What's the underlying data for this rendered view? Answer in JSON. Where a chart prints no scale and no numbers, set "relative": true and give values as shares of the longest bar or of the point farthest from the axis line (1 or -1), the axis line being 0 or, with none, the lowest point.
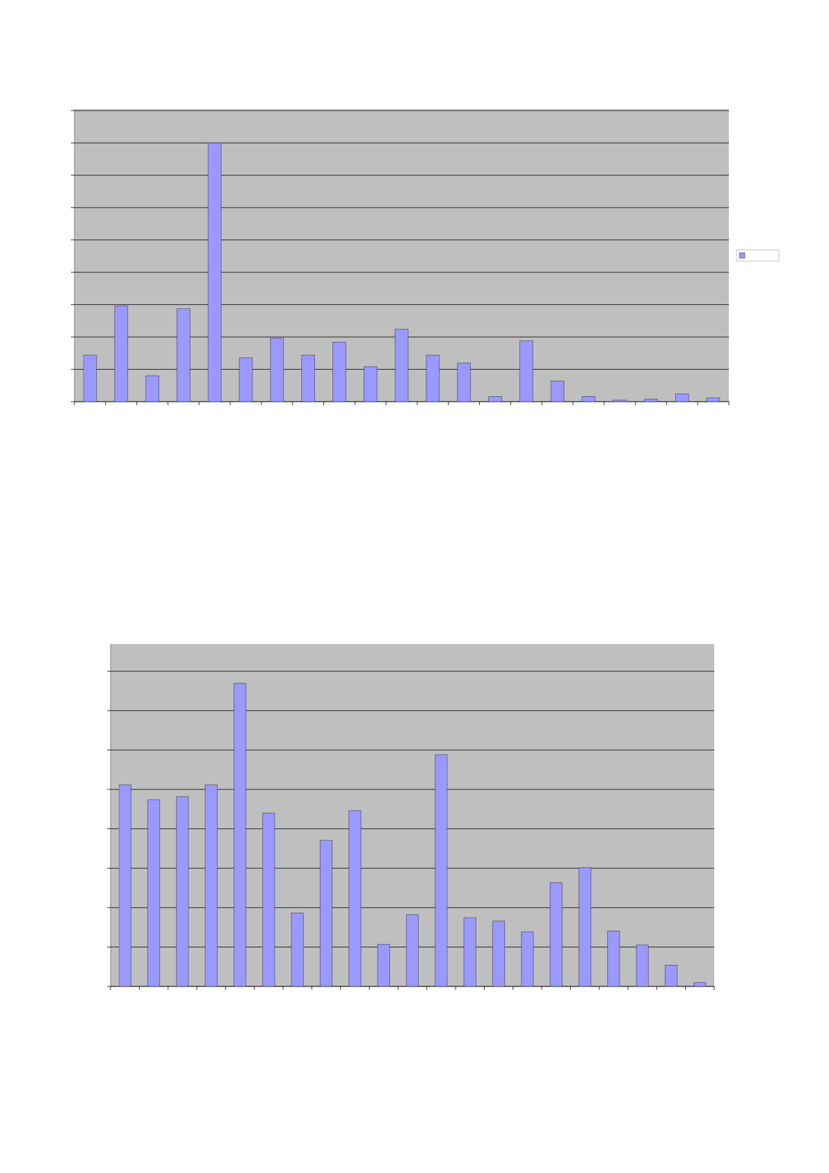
{
  "chart_data": [
    {
      "type": "bar",
      "relative": true,
      "categories": [
        null,
        null,
        null,
        null,
        null,
        null,
        null,
        null,
        null,
        null,
        null,
        null,
        null,
        null,
        null,
        null,
        null,
        null,
        null,
        null,
        null
      ],
      "values": [
        0.18,
        0.37,
        0.1,
        0.36,
        1.0,
        0.17,
        0.245,
        0.18,
        0.23,
        0.135,
        0.28,
        0.18,
        0.15,
        0.02,
        0.235,
        0.08,
        0.02,
        0.006,
        0.01,
        0.03,
        0.015
      ],
      "color": "#9999ff",
      "grid": "y"
    },
    {
      "type": "bar",
      "relative": true,
      "categories": [
        null,
        null,
        null,
        null,
        null,
        null,
        null,
        null,
        null,
        null,
        null,
        null,
        null,
        null,
        null,
        null,
        null,
        null,
        null,
        null,
        null
      ],
      "values": [
        0.665,
        0.616,
        0.626,
        0.665,
        1.0,
        0.572,
        0.242,
        0.482,
        0.58,
        0.139,
        0.237,
        0.765,
        0.227,
        0.216,
        0.18,
        0.343,
        0.392,
        0.183,
        0.137,
        0.07,
        0.013
      ],
      "color": "#9999ff",
      "grid": "y"
    }
  ]
}
